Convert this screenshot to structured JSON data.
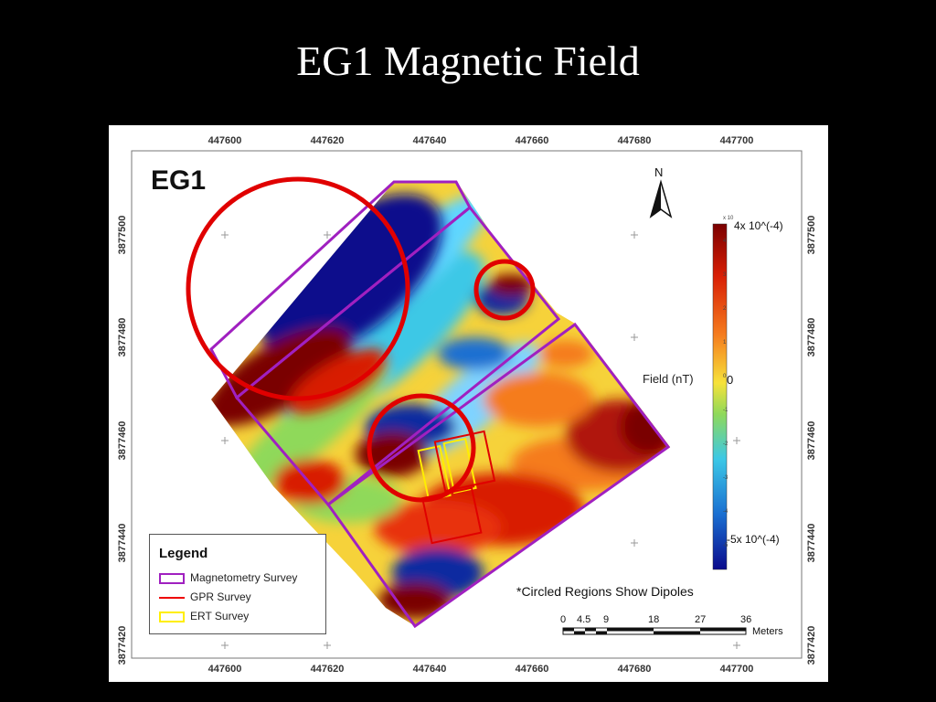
{
  "slide": {
    "title": "EG1 Magnetic Field"
  },
  "map": {
    "label": "EG1",
    "north": "N",
    "x_ticks_top": [
      "447600",
      "447620",
      "447640",
      "447660",
      "447680",
      "447700"
    ],
    "x_ticks_bottom": [
      "447600",
      "447620",
      "447640",
      "447660",
      "447680",
      "447700"
    ],
    "y_ticks": [
      "3877500",
      "3877480",
      "3877460",
      "3877440",
      "3877420"
    ],
    "note": "*Circled Regions Show Dipoles"
  },
  "colorbar": {
    "title": "Field (nT)",
    "max_label": "4x 10^(-4)",
    "zero_label": "0",
    "min_label": "-5x 10^(-4)",
    "exponent_label": "x 10",
    "colors": [
      "#7a0000",
      "#d81e05",
      "#f57c1e",
      "#f7e23a",
      "#8fd95a",
      "#3cc8e6",
      "#1a6fd1",
      "#0a0a8c"
    ]
  },
  "legend": {
    "title": "Legend",
    "items": [
      {
        "label": "Magnetometry Survey",
        "color": "#a020c0"
      },
      {
        "label": "GPR Survey",
        "color": "#e00000"
      },
      {
        "label": "ERT Survey",
        "color": "#ffee00"
      }
    ]
  },
  "scalebar": {
    "labels": [
      "0",
      "4.5",
      "9",
      "18",
      "27",
      "36"
    ],
    "unit": "Meters"
  }
}
